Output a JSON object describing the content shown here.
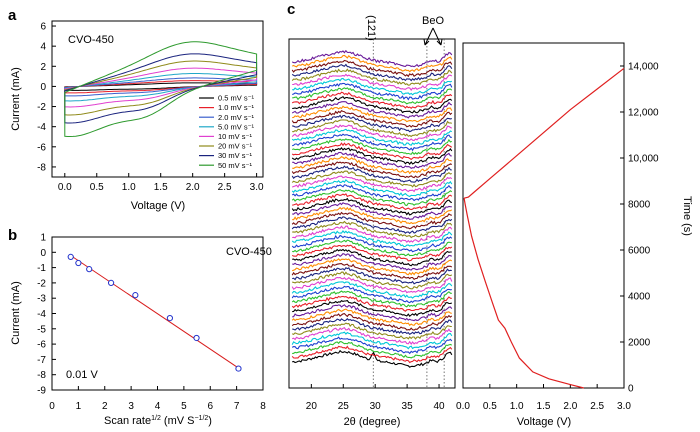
{
  "panel_labels": {
    "a": "a",
    "b": "b",
    "c": "c"
  },
  "chart_data": [
    {
      "type": "line",
      "panel": "a",
      "annotation": "CVO-450",
      "xlabel": "Voltage (V)",
      "ylabel": "Current (mA)",
      "xlim": [
        -0.2,
        3.1
      ],
      "ylim": [
        -9,
        6.5
      ],
      "xticks": [
        0.0,
        0.5,
        1.0,
        1.5,
        2.0,
        2.5,
        3.0
      ],
      "xtick_labels": [
        "0.0",
        "0.5",
        "1.0",
        "1.5",
        "2.0",
        "2.5",
        "3.0"
      ],
      "yticks": [
        -8,
        -6,
        -4,
        -2,
        0,
        2,
        4,
        6
      ],
      "ytick_labels": [
        "-8",
        "-6",
        "-4",
        "-2",
        "0",
        "2",
        "4",
        "6"
      ],
      "legend_position": "lower-right",
      "series": [
        {
          "name": "0.5 mV s⁻¹",
          "color": "#000000",
          "scale": 0.08
        },
        {
          "name": "1.0 mV s⁻¹",
          "color": "#e8202a",
          "scale": 0.13
        },
        {
          "name": "2.0 mV s⁻¹",
          "color": "#3a5fcd",
          "scale": 0.19
        },
        {
          "name": "5.0 mV s⁻¹",
          "color": "#20a8c8",
          "scale": 0.29
        },
        {
          "name": "10 mV s⁻¹",
          "color": "#e040d0",
          "scale": 0.41
        },
        {
          "name": "20 mV s⁻¹",
          "color": "#8f8a1a",
          "scale": 0.57
        },
        {
          "name": "30 mV s⁻¹",
          "color": "#1a237e",
          "scale": 0.73
        },
        {
          "name": "50 mV s⁻¹",
          "color": "#2e9a2e",
          "scale": 1.0
        }
      ]
    },
    {
      "type": "scatter",
      "panel": "b",
      "annotation": "CVO-450",
      "annotation2": "0.01 V",
      "xlabel": "Scan rate",
      "xlabel_sup": "1/2",
      "xlabel_units": " (mV S",
      "xlabel_units_sup": "−1/2",
      "xlabel_close": ")",
      "ylabel": "Current (mA)",
      "xlim": [
        0,
        8
      ],
      "ylim": [
        -9,
        1
      ],
      "xticks": [
        0,
        1,
        2,
        3,
        4,
        5,
        6,
        7,
        8
      ],
      "xtick_labels": [
        "0",
        "1",
        "2",
        "3",
        "4",
        "5",
        "6",
        "7",
        "8"
      ],
      "yticks": [
        -9,
        -8,
        -7,
        -6,
        -5,
        -4,
        -3,
        -2,
        -1,
        0,
        1
      ],
      "ytick_labels": [
        "-9",
        "-8",
        "-7",
        "-6",
        "-5",
        "-4",
        "-3",
        "-2",
        "-1",
        "0",
        "1"
      ],
      "x": [
        0.71,
        1.0,
        1.41,
        2.24,
        3.16,
        4.47,
        5.48,
        7.07
      ],
      "y": [
        -0.3,
        -0.7,
        -1.1,
        -2.0,
        -2.8,
        -4.3,
        -5.6,
        -7.6
      ],
      "fit": {
        "x": [
          0.7,
          7.1
        ],
        "y": [
          -0.2,
          -7.6
        ]
      },
      "marker_color": "#2233cc",
      "fit_color": "#d81b1b"
    },
    {
      "type": "line",
      "panel": "c-left",
      "xlabel": "2θ (degree)",
      "xlim": [
        16.5,
        42.5
      ],
      "xticks": [
        20,
        25,
        30,
        35,
        40
      ],
      "xtick_labels": [
        "20",
        "25",
        "30",
        "35",
        "40"
      ],
      "annotations": [
        "(121)",
        "BeO"
      ],
      "reference_lines_2theta": [
        29.7,
        38.1,
        40.8
      ],
      "series_colors": [
        "#000000",
        "#e8202a",
        "#2ec02e",
        "#1d3fd0",
        "#00c8d8",
        "#e040d0",
        "#8f8a1a",
        "#1a237e",
        "#7a1010",
        "#ff8c00",
        "#6a1b9a",
        "#000000",
        "#e8202a",
        "#2ec02e",
        "#1d3fd0",
        "#00c8d8",
        "#e040d0",
        "#8f8a1a",
        "#1a237e",
        "#7a1010",
        "#ff8c00",
        "#6a1b9a",
        "#000000",
        "#e8202a",
        "#2ec02e",
        "#1d3fd0",
        "#00c8d8",
        "#e040d0",
        "#8f8a1a",
        "#1a237e",
        "#7a1010",
        "#ff8c00",
        "#6a1b9a",
        "#000000",
        "#e8202a",
        "#2ec02e",
        "#1d3fd0",
        "#00c8d8",
        "#e040d0",
        "#8f8a1a",
        "#1a237e",
        "#7a1010",
        "#ff8c00",
        "#6a1b9a",
        "#000000",
        "#e8202a",
        "#2ec02e",
        "#1d3fd0",
        "#00c8d8",
        "#e040d0",
        "#8f8a1a",
        "#1a237e",
        "#7a1010",
        "#ff8c00",
        "#6a1b9a",
        "#000000",
        "#e8202a",
        "#2ec02e",
        "#1d3fd0",
        "#00c8d8",
        "#e040d0",
        "#8f8a1a",
        "#1a237e",
        "#7a1010",
        "#ff8c00",
        "#6a1b9a"
      ]
    },
    {
      "type": "line",
      "panel": "c-right",
      "xlabel": "Voltage (V)",
      "ylabel": "Time (s)",
      "xlim": [
        0,
        3.0
      ],
      "ylim": [
        0,
        15000
      ],
      "xticks": [
        0.0,
        0.5,
        1.0,
        1.5,
        2.0,
        2.5,
        3.0
      ],
      "xtick_labels": [
        "0.0",
        "0.5",
        "1.0",
        "1.5",
        "2.0",
        "2.5",
        "3.0"
      ],
      "yticks": [
        0,
        2000,
        4000,
        6000,
        8000,
        10000,
        12000,
        14000
      ],
      "ytick_labels": [
        "0",
        "2000",
        "4000",
        "6000",
        "8000",
        "10,000",
        "12,000",
        "14,000"
      ],
      "color": "#e02020",
      "discharge": {
        "x": [
          2.25,
          2.0,
          1.6,
          1.3,
          1.05,
          0.9,
          0.78,
          0.66,
          0.55,
          0.42,
          0.28,
          0.16,
          0.08,
          0.04,
          0.02
        ],
        "y": [
          0,
          150,
          400,
          700,
          1300,
          2000,
          2600,
          2950,
          3700,
          4600,
          5600,
          6600,
          7500,
          8000,
          8250
        ]
      },
      "charge": {
        "x": [
          0.02,
          0.1,
          0.2,
          0.5,
          1.0,
          1.5,
          2.0,
          2.5,
          3.0
        ],
        "y": [
          8250,
          8300,
          8500,
          9100,
          10100,
          11100,
          12100,
          13000,
          13900
        ]
      }
    }
  ]
}
